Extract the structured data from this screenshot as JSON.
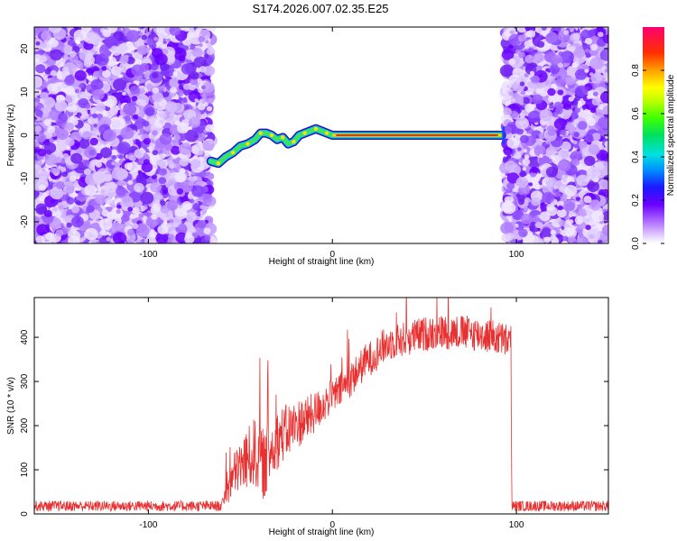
{
  "title": "S174.2026.007.02.35.E25",
  "chart_data": [
    {
      "type": "heatmap",
      "xlabel": "Height of straight line (km)",
      "ylabel": "Frequency (Hz)",
      "xlim": [
        -162,
        150
      ],
      "ylim": [
        -25,
        25
      ],
      "xticks": [
        -100,
        0,
        100
      ],
      "yticks": [
        -20,
        -10,
        0,
        10,
        20
      ],
      "noise_regions": [
        [
          -162,
          -66
        ],
        [
          94,
          150
        ]
      ],
      "signal_track": {
        "x": [
          -66,
          -62,
          -58,
          -54,
          -50,
          -46,
          -42,
          -39,
          -36,
          -33,
          -30,
          -27,
          -24,
          -21,
          -18,
          -15,
          -12,
          -9,
          -6,
          -3,
          0,
          20,
          40,
          60,
          80,
          92
        ],
        "freq": [
          -6,
          -6.5,
          -5,
          -4,
          -2.5,
          -2,
          -1,
          0.5,
          0.5,
          0,
          -1,
          -0.5,
          -2,
          -1.5,
          0,
          0.5,
          1,
          1.5,
          1,
          0.5,
          0,
          0,
          0,
          0,
          0,
          0
        ]
      },
      "colorbar": {
        "label": "Normalized spectral amplitude",
        "range": [
          0.0,
          1.0
        ],
        "ticks": [
          0.0,
          0.2,
          0.4,
          0.6,
          0.8
        ],
        "tick_labels": [
          "0.0",
          "0.2",
          "0.4",
          "0.6",
          "0.8"
        ]
      }
    },
    {
      "type": "line",
      "xlabel": "Height of straight line (km)",
      "ylabel": "SNR (10 * v/v)",
      "xlim": [
        -162,
        150
      ],
      "ylim": [
        0,
        490
      ],
      "xticks": [
        -100,
        0,
        100
      ],
      "yticks": [
        0,
        100,
        200,
        300,
        400
      ],
      "color": "#e83030",
      "series": [
        {
          "name": "SNR",
          "x": [
            -162,
            -60,
            -57,
            -52,
            -47,
            -42,
            -37,
            -32,
            -27,
            -22,
            -17,
            -12,
            -7,
            -2,
            3,
            8,
            13,
            18,
            23,
            28,
            33,
            38,
            43,
            48,
            53,
            58,
            63,
            68,
            73,
            78,
            83,
            88,
            93,
            97,
            97.5,
            150
          ],
          "y": [
            18,
            18,
            60,
            100,
            120,
            140,
            110,
            160,
            180,
            195,
            210,
            220,
            240,
            260,
            275,
            295,
            320,
            345,
            360,
            380,
            390,
            395,
            400,
            405,
            410,
            412,
            412,
            412,
            410,
            408,
            405,
            400,
            395,
            390,
            18,
            18
          ],
          "noise": [
            12,
            12,
            40,
            55,
            70,
            80,
            80,
            70,
            65,
            60,
            55,
            50,
            45,
            40,
            40,
            40,
            40,
            40,
            40,
            40,
            40,
            40,
            40,
            40,
            40,
            40,
            40,
            40,
            40,
            40,
            40,
            40,
            40,
            40,
            12,
            12
          ]
        }
      ]
    }
  ]
}
